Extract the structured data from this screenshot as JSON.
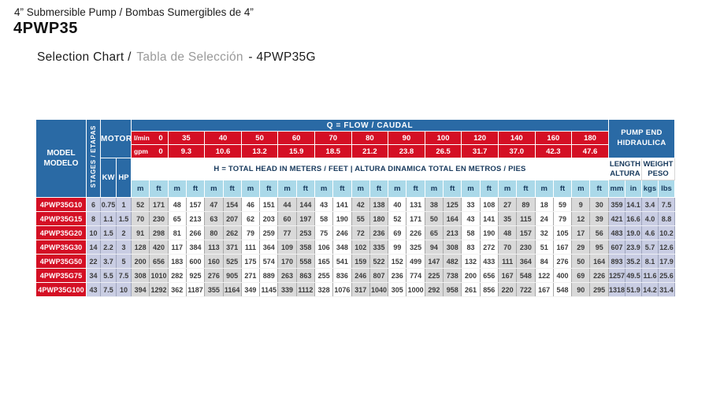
{
  "header": {
    "product_title": "4” Submersible Pump / Bombas Sumergibles de 4”",
    "series": "4PWP35",
    "subtitle_en": "Selection Chart /",
    "subtitle_es": "Tabla de Selección",
    "subtitle_model": "- 4PWP35G"
  },
  "colors": {
    "header_blue": "#2a6aa5",
    "header_red": "#d40f24",
    "unit_cyan": "#abd9e9",
    "lavender": "#c9cde3",
    "stripe_gray": "#d9d9d9",
    "navy_text": "#17395c"
  },
  "table": {
    "header": {
      "model_line1": "MODEL",
      "model_line2": "MODELO",
      "stages": "STAGES / ETAPAS",
      "motor": "MOTOR",
      "kw": "KW",
      "hp": "HP",
      "flow_title": "Q = FLOW / CAUDAL",
      "lmin_label": "l/min",
      "gpm_label": "gpm",
      "flow_lmin": [
        "0",
        "35",
        "40",
        "50",
        "60",
        "70",
        "80",
        "90",
        "100",
        "120",
        "140",
        "160",
        "180"
      ],
      "flow_gpm": [
        "0",
        "9.3",
        "10.6",
        "13.2",
        "15.9",
        "18.5",
        "21.2",
        "23.8",
        "26.5",
        "31.7",
        "37.0",
        "42.3",
        "47.6"
      ],
      "head_label": "H = TOTAL HEAD IN METERS / FEET | ALTURA DINAMICA TOTAL EN METROS / PIES",
      "pump_end_line1": "PUMP END",
      "pump_end_line2": "HIDRAULICA",
      "length_line1": "LENGTH",
      "length_line2": "ALTURA",
      "weight_line1": "WEIGHT",
      "weight_line2": "PESO",
      "unit_m": "m",
      "unit_ft": "ft",
      "pump_units": [
        "mm",
        "in",
        "kgs",
        "lbs"
      ]
    },
    "rows": [
      {
        "model": "4PWP35G10",
        "stages": "6",
        "kw": "0.75",
        "hp": "1",
        "head": [
          [
            52,
            171
          ],
          [
            48,
            157
          ],
          [
            47,
            154
          ],
          [
            46,
            151
          ],
          [
            44,
            144
          ],
          [
            43,
            141
          ],
          [
            42,
            138
          ],
          [
            40,
            131
          ],
          [
            38,
            125
          ],
          [
            33,
            108
          ],
          [
            27,
            89
          ],
          [
            18,
            59
          ],
          [
            9,
            30
          ]
        ],
        "pump_end": [
          "359",
          "14.1",
          "3.4",
          "7.5"
        ]
      },
      {
        "model": "4PWP35G15",
        "stages": "8",
        "kw": "1.1",
        "hp": "1.5",
        "head": [
          [
            70,
            230
          ],
          [
            65,
            213
          ],
          [
            63,
            207
          ],
          [
            62,
            203
          ],
          [
            60,
            197
          ],
          [
            58,
            190
          ],
          [
            55,
            180
          ],
          [
            52,
            171
          ],
          [
            50,
            164
          ],
          [
            43,
            141
          ],
          [
            35,
            115
          ],
          [
            24,
            79
          ],
          [
            12,
            39
          ]
        ],
        "pump_end": [
          "421",
          "16.6",
          "4.0",
          "8.8"
        ]
      },
      {
        "model": "4PWP35G20",
        "stages": "10",
        "kw": "1.5",
        "hp": "2",
        "head": [
          [
            91,
            298
          ],
          [
            81,
            266
          ],
          [
            80,
            262
          ],
          [
            79,
            259
          ],
          [
            77,
            253
          ],
          [
            75,
            246
          ],
          [
            72,
            236
          ],
          [
            69,
            226
          ],
          [
            65,
            213
          ],
          [
            58,
            190
          ],
          [
            48,
            157
          ],
          [
            32,
            105
          ],
          [
            17,
            56
          ]
        ],
        "pump_end": [
          "483",
          "19.0",
          "4.6",
          "10.2"
        ]
      },
      {
        "model": "4PWP35G30",
        "stages": "14",
        "kw": "2.2",
        "hp": "3",
        "head": [
          [
            128,
            420
          ],
          [
            117,
            384
          ],
          [
            113,
            371
          ],
          [
            111,
            364
          ],
          [
            109,
            358
          ],
          [
            106,
            348
          ],
          [
            102,
            335
          ],
          [
            99,
            325
          ],
          [
            94,
            308
          ],
          [
            83,
            272
          ],
          [
            70,
            230
          ],
          [
            51,
            167
          ],
          [
            29,
            95
          ]
        ],
        "pump_end": [
          "607",
          "23.9",
          "5.7",
          "12.6"
        ]
      },
      {
        "model": "4PWP35G50",
        "stages": "22",
        "kw": "3.7",
        "hp": "5",
        "head": [
          [
            200,
            656
          ],
          [
            183,
            600
          ],
          [
            160,
            525
          ],
          [
            175,
            574
          ],
          [
            170,
            558
          ],
          [
            165,
            541
          ],
          [
            159,
            522
          ],
          [
            152,
            499
          ],
          [
            147,
            482
          ],
          [
            132,
            433
          ],
          [
            111,
            364
          ],
          [
            84,
            276
          ],
          [
            50,
            164
          ]
        ],
        "pump_end": [
          "893",
          "35.2",
          "8.1",
          "17.9"
        ]
      },
      {
        "model": "4PWP35G75",
        "stages": "34",
        "kw": "5.5",
        "hp": "7.5",
        "head": [
          [
            308,
            1010
          ],
          [
            282,
            925
          ],
          [
            276,
            905
          ],
          [
            271,
            889
          ],
          [
            263,
            863
          ],
          [
            255,
            836
          ],
          [
            246,
            807
          ],
          [
            236,
            774
          ],
          [
            225,
            738
          ],
          [
            200,
            656
          ],
          [
            167,
            548
          ],
          [
            122,
            400
          ],
          [
            69,
            226
          ]
        ],
        "pump_end": [
          "1257",
          "49.5",
          "11.6",
          "25.6"
        ]
      },
      {
        "model": "4PWP35G100",
        "stages": "43",
        "kw": "7.5",
        "hp": "10",
        "head": [
          [
            394,
            1292
          ],
          [
            362,
            1187
          ],
          [
            355,
            1164
          ],
          [
            349,
            1145
          ],
          [
            339,
            1112
          ],
          [
            328,
            1076
          ],
          [
            317,
            1040
          ],
          [
            305,
            1000
          ],
          [
            292,
            958
          ],
          [
            261,
            856
          ],
          [
            220,
            722
          ],
          [
            167,
            548
          ],
          [
            90,
            295
          ]
        ],
        "pump_end": [
          "1318",
          "51.9",
          "14.2",
          "31.4"
        ]
      }
    ]
  }
}
